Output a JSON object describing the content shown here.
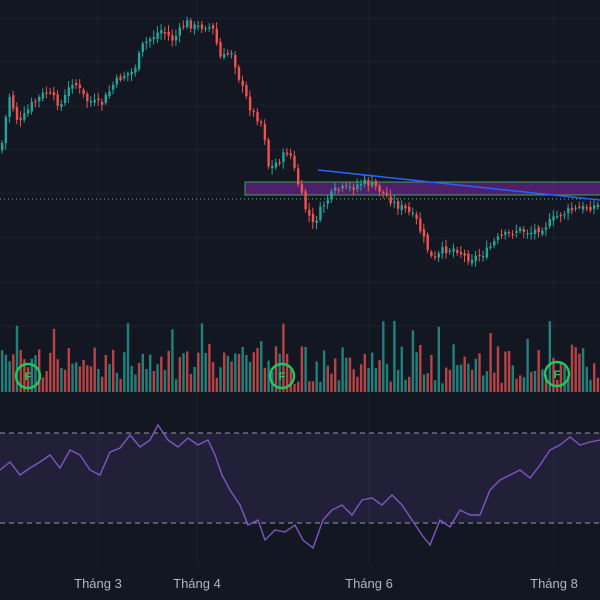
{
  "chart_data": {
    "type": "candlestick",
    "x_labels": [
      "Tháng 3",
      "Tháng 4",
      "Tháng 6",
      "Tháng 8"
    ],
    "colors": {
      "background": "#131722",
      "up": "#26a69a",
      "down": "#ef5350",
      "rsi_line": "#7e57c2",
      "rsi_band": "rgba(126,87,194,0.14)",
      "zone_fill": "rgba(128,40,170,0.55)",
      "zone_border": "#3fa34d",
      "trendline": "#2962ff",
      "flag_marker": "#22c55e"
    },
    "markers": [
      {
        "label": "F"
      },
      {
        "label": "F"
      },
      {
        "label": "F"
      }
    ]
  }
}
